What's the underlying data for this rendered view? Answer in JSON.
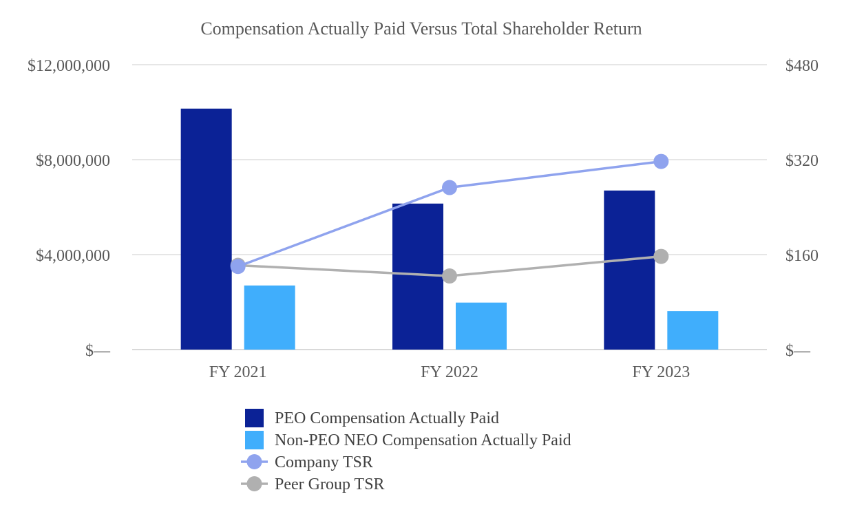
{
  "chart_data": {
    "type": "bar",
    "title": "Compensation Actually Paid Versus Total Shareholder Return",
    "categories": [
      "FY 2021",
      "FY 2022",
      "FY 2023"
    ],
    "left_axis": {
      "min": 0,
      "max": 12000000,
      "ticks": [
        0,
        4000000,
        8000000,
        12000000
      ],
      "tick_labels": [
        "$—",
        "$4,000,000",
        "$8,000,000",
        "$12,000,000"
      ]
    },
    "right_axis": {
      "min": 0,
      "max": 480,
      "ticks": [
        0,
        160,
        320,
        480
      ],
      "tick_labels": [
        "$—",
        "$160",
        "$320",
        "$480"
      ]
    },
    "series": [
      {
        "name": "PEO Compensation Actually Paid",
        "kind": "bar",
        "axis": "left",
        "color": "#0b2296",
        "values": [
          10150000,
          6150000,
          6700000
        ]
      },
      {
        "name": "Non-PEO NEO Compensation Actually Paid",
        "kind": "bar",
        "axis": "left",
        "color": "#40aefc",
        "values": [
          2700000,
          1980000,
          1620000
        ]
      },
      {
        "name": "Company TSR",
        "kind": "line",
        "axis": "right",
        "color": "#8fa3ee",
        "values": [
          140,
          273,
          317
        ]
      },
      {
        "name": "Peer Group TSR",
        "kind": "line",
        "axis": "right",
        "color": "#b0b0b0",
        "values": [
          142,
          124,
          157
        ]
      }
    ],
    "grid": true,
    "legend_position": "bottom-center"
  }
}
